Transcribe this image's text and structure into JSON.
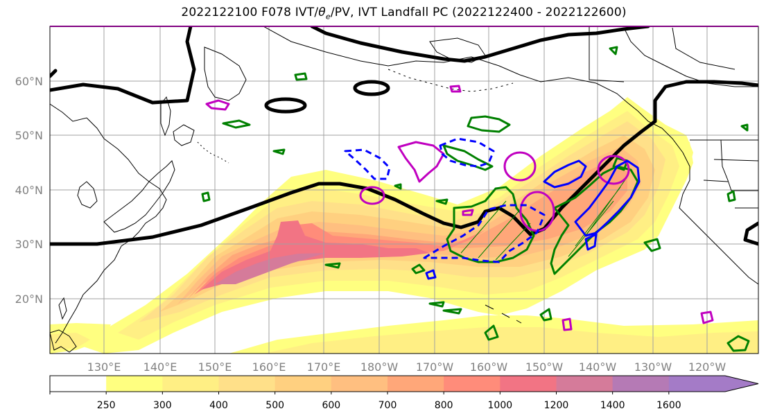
{
  "title": "2022122100 F078 IVT/θe/PV, IVT Landfall PC (2022122400 - 2022122600)",
  "map": {
    "lon_labels": [
      "130°E",
      "140°E",
      "150°E",
      "160°E",
      "170°E",
      "180°W",
      "170°W",
      "160°W",
      "150°W",
      "140°W",
      "130°W",
      "120°W"
    ],
    "lat_labels": [
      "60°N",
      "50°N",
      "40°N",
      "30°N",
      "20°N"
    ],
    "gridlines": true,
    "colors": {
      "thick_contour": "#000000",
      "pv_contour": "#00aa00",
      "magenta_contour": "#c000c0",
      "blue_contour": "#0000ff",
      "coast": "#000000",
      "grid": "#a0a0a0"
    }
  },
  "colorbar": {
    "levels": [
      "250",
      "300",
      "400",
      "500",
      "600",
      "700",
      "800",
      "1000",
      "1200",
      "1400",
      "1600"
    ],
    "colors": [
      "#ffffff",
      "#ffff80",
      "#ffef84",
      "#ffe089",
      "#ffd080",
      "#ffbf80",
      "#ffa779",
      "#ff8c7a",
      "#f27484",
      "#d57b9a",
      "#b57ab5",
      "#a47bc7"
    ],
    "extend": "max"
  }
}
